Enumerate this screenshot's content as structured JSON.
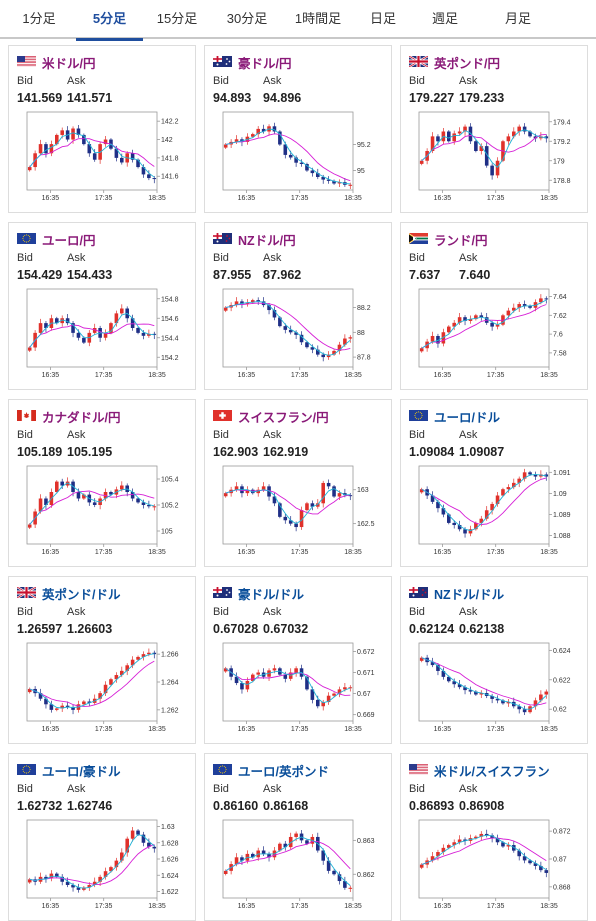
{
  "tabs": [
    {
      "label": "1分足",
      "active": false
    },
    {
      "label": "5分足",
      "active": true
    },
    {
      "label": "15分足",
      "active": false
    },
    {
      "label": "30分足",
      "active": false
    },
    {
      "label": "1時間足",
      "active": false
    },
    {
      "label": "日足",
      "active": false
    },
    {
      "label": "週足",
      "active": false
    },
    {
      "label": "月足",
      "active": false
    }
  ],
  "labels": {
    "bid": "Bid",
    "ask": "Ask"
  },
  "colors": {
    "up": "#e0312b",
    "down": "#1f2f86",
    "ma_long": "#d61fd6",
    "ma_short": "#1fb3d6",
    "jpy_pair": "#8a1a78",
    "cross_pair": "#0a4e9a",
    "accent": "#1f4e9e"
  },
  "cards": [
    {
      "pair": "米ドル/円",
      "type": "jpy",
      "flag": "us",
      "bid": "141.569",
      "ask": "141.571",
      "chart_data": {
        "type": "candlestick",
        "xticks": [
          "16:35",
          "17:35",
          "18:35"
        ],
        "yticks": [
          "142.2",
          "142",
          "141.8",
          "141.6"
        ],
        "ylim": [
          141.45,
          142.3
        ],
        "close": [
          141.7,
          141.85,
          141.95,
          141.85,
          141.95,
          142.05,
          142.1,
          142.0,
          142.12,
          142.05,
          141.95,
          141.85,
          141.78,
          141.95,
          142.0,
          141.9,
          141.8,
          141.75,
          141.85,
          141.78,
          141.7,
          141.62,
          141.58,
          141.57
        ]
      }
    },
    {
      "pair": "豪ドル/円",
      "type": "jpy",
      "flag": "au",
      "bid": "94.893",
      "ask": "94.896",
      "chart_data": {
        "type": "candlestick",
        "xticks": [
          "16:35",
          "17:35",
          "18:35"
        ],
        "yticks": [
          "95.2",
          "95"
        ],
        "ylim": [
          94.85,
          95.45
        ],
        "close": [
          95.2,
          95.22,
          95.24,
          95.22,
          95.26,
          95.28,
          95.32,
          95.3,
          95.34,
          95.3,
          95.2,
          95.12,
          95.1,
          95.06,
          95.05,
          95.0,
          94.98,
          94.95,
          94.93,
          94.92,
          94.9,
          94.91,
          94.89,
          94.89
        ]
      }
    },
    {
      "pair": "英ポンド/円",
      "type": "jpy",
      "flag": "gb",
      "bid": "179.227",
      "ask": "179.233",
      "chart_data": {
        "type": "candlestick",
        "xticks": [
          "16:35",
          "17:35",
          "18:35"
        ],
        "yticks": [
          "179.4",
          "179.2",
          "179",
          "178.8"
        ],
        "ylim": [
          178.7,
          179.5
        ],
        "close": [
          179.0,
          179.1,
          179.25,
          179.2,
          179.3,
          179.2,
          179.28,
          179.3,
          179.35,
          179.2,
          179.1,
          179.15,
          178.95,
          178.85,
          179.0,
          179.2,
          179.25,
          179.3,
          179.35,
          179.3,
          179.25,
          179.23,
          179.25,
          179.23
        ]
      }
    },
    {
      "pair": "ユーロ/円",
      "type": "jpy",
      "flag": "eu",
      "bid": "154.429",
      "ask": "154.433",
      "chart_data": {
        "type": "candlestick",
        "xticks": [
          "16:35",
          "17:35",
          "18:35"
        ],
        "yticks": [
          "154.8",
          "154.6",
          "154.4",
          "154.2"
        ],
        "ylim": [
          154.1,
          154.9
        ],
        "close": [
          154.3,
          154.45,
          154.55,
          154.5,
          154.6,
          154.55,
          154.6,
          154.55,
          154.45,
          154.4,
          154.35,
          154.45,
          154.5,
          154.4,
          154.45,
          154.55,
          154.65,
          154.7,
          154.6,
          154.5,
          154.45,
          154.42,
          154.44,
          154.43
        ]
      }
    },
    {
      "pair": "NZドル/円",
      "type": "jpy",
      "flag": "nz",
      "bid": "87.955",
      "ask": "87.962",
      "chart_data": {
        "type": "candlestick",
        "xticks": [
          "16:35",
          "17:35",
          "18:35"
        ],
        "yticks": [
          "88.2",
          "88",
          "87.8"
        ],
        "ylim": [
          87.72,
          88.35
        ],
        "close": [
          88.2,
          88.22,
          88.25,
          88.23,
          88.24,
          88.26,
          88.25,
          88.22,
          88.18,
          88.12,
          88.05,
          88.02,
          88.0,
          87.98,
          87.92,
          87.88,
          87.86,
          87.82,
          87.8,
          87.82,
          87.85,
          87.9,
          87.95,
          87.96
        ]
      }
    },
    {
      "pair": "ランド/円",
      "type": "jpy",
      "flag": "za",
      "bid": "7.637",
      "ask": "7.640",
      "chart_data": {
        "type": "candlestick",
        "xticks": [
          "16:35",
          "17:35",
          "18:35"
        ],
        "yticks": [
          "7.64",
          "7.62",
          "7.6",
          "7.58"
        ],
        "ylim": [
          7.565,
          7.648
        ],
        "close": [
          7.585,
          7.592,
          7.598,
          7.59,
          7.602,
          7.608,
          7.612,
          7.618,
          7.614,
          7.616,
          7.62,
          7.618,
          7.612,
          7.608,
          7.61,
          7.62,
          7.625,
          7.628,
          7.632,
          7.63,
          7.628,
          7.634,
          7.638,
          7.637
        ]
      }
    },
    {
      "pair": "カナダドル/円",
      "type": "jpy",
      "flag": "ca",
      "bid": "105.189",
      "ask": "105.195",
      "chart_data": {
        "type": "candlestick",
        "xticks": [
          "16:35",
          "17:35",
          "18:35"
        ],
        "yticks": [
          "105.4",
          "105.2",
          "105"
        ],
        "ylim": [
          104.9,
          105.5
        ],
        "close": [
          105.05,
          105.15,
          105.25,
          105.2,
          105.3,
          105.38,
          105.35,
          105.38,
          105.3,
          105.25,
          105.28,
          105.22,
          105.2,
          105.25,
          105.3,
          105.28,
          105.32,
          105.35,
          105.3,
          105.25,
          105.22,
          105.2,
          105.19,
          105.19
        ]
      }
    },
    {
      "pair": "スイスフラン/円",
      "type": "jpy",
      "flag": "ch",
      "bid": "162.903",
      "ask": "162.919",
      "chart_data": {
        "type": "candlestick",
        "xticks": [
          "16:35",
          "17:35",
          "18:35"
        ],
        "yticks": [
          "163",
          "162.5"
        ],
        "ylim": [
          162.2,
          163.35
        ],
        "close": [
          162.95,
          163.0,
          163.05,
          162.95,
          163.0,
          162.95,
          163.0,
          163.05,
          162.9,
          162.8,
          162.6,
          162.55,
          162.5,
          162.45,
          162.7,
          162.8,
          162.75,
          162.8,
          163.1,
          163.05,
          162.9,
          162.95,
          162.92,
          162.91
        ]
      }
    },
    {
      "pair": "ユーロ/ドル",
      "type": "cross",
      "flag": "eu",
      "bid": "1.09084",
      "ask": "1.09087",
      "chart_data": {
        "type": "candlestick",
        "xticks": [
          "16:35",
          "17:35",
          "18:35"
        ],
        "yticks": [
          "1.091",
          "1.09",
          "1.089",
          "1.088"
        ],
        "ylim": [
          1.0876,
          1.0913
        ],
        "close": [
          1.0902,
          1.0899,
          1.0896,
          1.0893,
          1.089,
          1.0886,
          1.0885,
          1.0883,
          1.0881,
          1.0883,
          1.0886,
          1.0888,
          1.0892,
          1.0895,
          1.0899,
          1.0902,
          1.0903,
          1.0905,
          1.0907,
          1.091,
          1.0909,
          1.0908,
          1.0909,
          1.0908
        ]
      }
    },
    {
      "pair": "英ポンド/ドル",
      "type": "cross",
      "flag": "gb",
      "bid": "1.26597",
      "ask": "1.26603",
      "chart_data": {
        "type": "candlestick",
        "xticks": [
          "16:35",
          "17:35",
          "18:35"
        ],
        "yticks": [
          "1.266",
          "1.264",
          "1.262"
        ],
        "ylim": [
          1.2612,
          1.2668
        ],
        "close": [
          1.2635,
          1.2632,
          1.2628,
          1.2624,
          1.262,
          1.2621,
          1.2623,
          1.2622,
          1.262,
          1.2624,
          1.2626,
          1.2625,
          1.2628,
          1.2632,
          1.2638,
          1.2642,
          1.2645,
          1.2648,
          1.2652,
          1.2656,
          1.2658,
          1.266,
          1.2661,
          1.266
        ]
      }
    },
    {
      "pair": "豪ドル/ドル",
      "type": "cross",
      "flag": "au",
      "bid": "0.67028",
      "ask": "0.67032",
      "chart_data": {
        "type": "candlestick",
        "xticks": [
          "16:35",
          "17:35",
          "18:35"
        ],
        "yticks": [
          "0.672",
          "0.671",
          "0.67",
          "0.669"
        ],
        "ylim": [
          0.6687,
          0.6724
        ],
        "close": [
          0.6712,
          0.6708,
          0.6705,
          0.6702,
          0.6706,
          0.6709,
          0.671,
          0.6708,
          0.6711,
          0.6712,
          0.6709,
          0.6707,
          0.671,
          0.6712,
          0.6708,
          0.6702,
          0.6697,
          0.6694,
          0.6696,
          0.6699,
          0.67,
          0.6702,
          0.6703,
          0.6703
        ]
      }
    },
    {
      "pair": "NZドル/ドル",
      "type": "cross",
      "flag": "nz",
      "bid": "0.62124",
      "ask": "0.62138",
      "chart_data": {
        "type": "candlestick",
        "xticks": [
          "16:35",
          "17:35",
          "18:35"
        ],
        "yticks": [
          "0.624",
          "0.622",
          "0.62"
        ],
        "ylim": [
          0.6192,
          0.6245
        ],
        "close": [
          0.6235,
          0.6232,
          0.623,
          0.6226,
          0.6222,
          0.6219,
          0.6217,
          0.6215,
          0.6213,
          0.6212,
          0.621,
          0.6211,
          0.6209,
          0.6207,
          0.6206,
          0.6204,
          0.6205,
          0.6202,
          0.62,
          0.6198,
          0.6202,
          0.6206,
          0.621,
          0.6212
        ]
      }
    },
    {
      "pair": "ユーロ/豪ドル",
      "type": "cross",
      "flag": "eu",
      "bid": "1.62732",
      "ask": "1.62746",
      "chart_data": {
        "type": "candlestick",
        "xticks": [
          "16:35",
          "17:35",
          "18:35"
        ],
        "yticks": [
          "1.63",
          "1.628",
          "1.626",
          "1.624",
          "1.622"
        ],
        "ylim": [
          1.6212,
          1.6308
        ],
        "close": [
          1.6235,
          1.6232,
          1.6238,
          1.6236,
          1.6242,
          1.6238,
          1.6232,
          1.6228,
          1.6225,
          1.6222,
          1.6225,
          1.6228,
          1.6232,
          1.6238,
          1.6245,
          1.625,
          1.6258,
          1.6268,
          1.6285,
          1.6295,
          1.629,
          1.628,
          1.6275,
          1.6273
        ]
      }
    },
    {
      "pair": "ユーロ/英ポンド",
      "type": "cross",
      "flag": "eu",
      "bid": "0.86160",
      "ask": "0.86168",
      "chart_data": {
        "type": "candlestick",
        "xticks": [
          "16:35",
          "17:35",
          "18:35"
        ],
        "yticks": [
          "0.863",
          "0.862"
        ],
        "ylim": [
          0.8613,
          0.8636
        ],
        "close": [
          0.8621,
          0.8623,
          0.8625,
          0.8624,
          0.8626,
          0.8625,
          0.8627,
          0.8626,
          0.8625,
          0.8627,
          0.8629,
          0.8628,
          0.8631,
          0.8632,
          0.863,
          0.8629,
          0.8631,
          0.8627,
          0.8624,
          0.8621,
          0.862,
          0.8618,
          0.8616,
          0.8616
        ]
      }
    },
    {
      "pair": "米ドル/スイスフラン",
      "type": "cross",
      "flag": "us",
      "bid": "0.86893",
      "ask": "0.86908",
      "chart_data": {
        "type": "candlestick",
        "xticks": [
          "16:35",
          "17:35",
          "18:35"
        ],
        "yticks": [
          "0.872",
          "0.87",
          "0.868"
        ],
        "ylim": [
          0.8672,
          0.8728
        ],
        "close": [
          0.8696,
          0.8699,
          0.8702,
          0.8705,
          0.8708,
          0.871,
          0.8712,
          0.8714,
          0.8713,
          0.8715,
          0.8716,
          0.8718,
          0.8717,
          0.8715,
          0.8712,
          0.8709,
          0.871,
          0.8706,
          0.8702,
          0.8699,
          0.8697,
          0.8695,
          0.8692,
          0.869
        ]
      }
    }
  ]
}
